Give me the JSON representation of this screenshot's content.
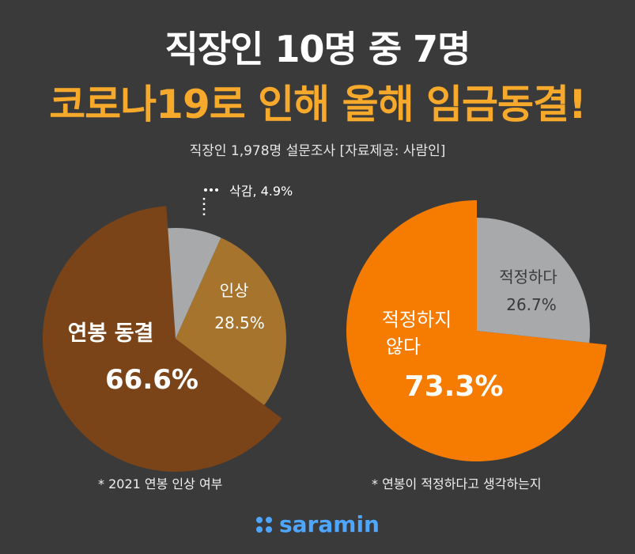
{
  "header": {
    "title_line1": "직장인 10명 중 7명",
    "title_line2": "코로나19로 인해 올해 임금동결!",
    "subtitle": "직장인 1,978명 설문조사 [자료제공: 사람인]"
  },
  "chart_data": [
    {
      "type": "pie",
      "caption": "* 2021 연봉 인상 여부",
      "slices": [
        {
          "label": "연봉 동결",
          "value": 66.6,
          "display": "66.6%",
          "color": "#7a4418"
        },
        {
          "label": "삭감",
          "value": 4.9,
          "display": "4.9%",
          "color": "#a7a9ab"
        },
        {
          "label": "인상",
          "value": 28.5,
          "display": "28.5%",
          "color": "#a7742e"
        }
      ],
      "annotation": "삭감, 4.9%"
    },
    {
      "type": "pie",
      "caption": "* 연봉이 적정하다고 생각하는지",
      "slices": [
        {
          "label": "적정하지 않다",
          "label_lines": [
            "적정하지",
            "않다"
          ],
          "value": 73.3,
          "display": "73.3%",
          "color": "#f57c00"
        },
        {
          "label": "적정하다",
          "value": 26.7,
          "display": "26.7%",
          "color": "#a7a9ab"
        }
      ]
    }
  ],
  "footer": {
    "brand": "saramin",
    "accent": "#4da6ff"
  }
}
